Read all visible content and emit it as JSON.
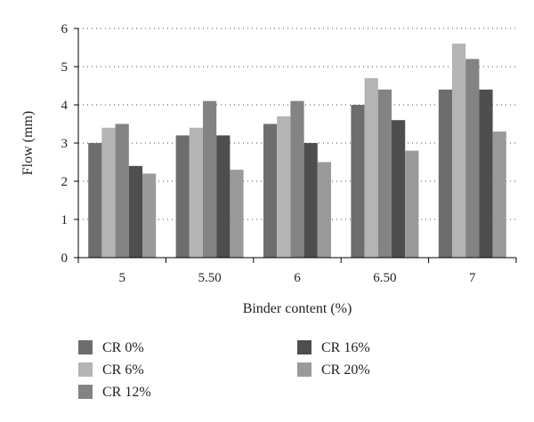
{
  "chart_data": {
    "type": "bar",
    "title": "",
    "xlabel": "Binder content (%)",
    "ylabel": "Flow (mm)",
    "categories": [
      "5",
      "5.50",
      "6",
      "6.50",
      "7"
    ],
    "series": [
      {
        "name": "CR 0%",
        "color": "#6d6d6d",
        "values": [
          3.0,
          3.2,
          3.5,
          4.0,
          4.4
        ]
      },
      {
        "name": "CR 6%",
        "color": "#b4b4b4",
        "values": [
          3.4,
          3.4,
          3.7,
          4.7,
          5.6
        ]
      },
      {
        "name": "CR 12%",
        "color": "#838383",
        "values": [
          3.5,
          4.1,
          4.1,
          4.4,
          5.2
        ]
      },
      {
        "name": "CR 16%",
        "color": "#4e4e4e",
        "values": [
          2.4,
          3.2,
          3.0,
          3.6,
          4.4
        ]
      },
      {
        "name": "CR 20%",
        "color": "#9a9a9a",
        "values": [
          2.2,
          2.3,
          2.5,
          2.8,
          3.3
        ]
      }
    ],
    "ylim": [
      0,
      6
    ],
    "yticks": [
      "0",
      "1",
      "2",
      "3",
      "4",
      "5",
      "6"
    ],
    "grid": "horizontal dotted",
    "legend_position": "bottom"
  }
}
